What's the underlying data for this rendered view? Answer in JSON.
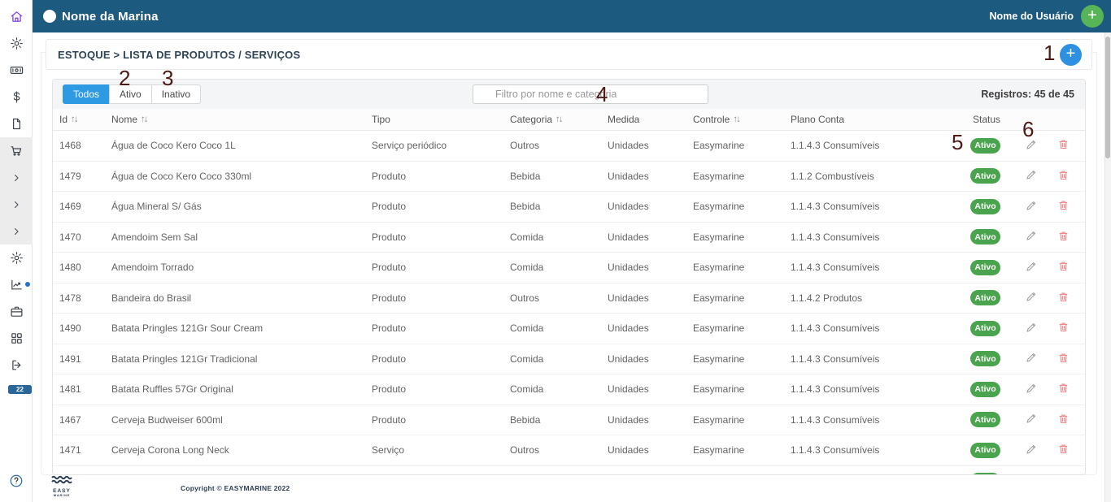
{
  "topbar": {
    "marina_name": "Nome da Marina",
    "user_name": "Nome do Usuário",
    "add_user_label": "+"
  },
  "breadcrumb": {
    "text": "ESTOQUE > LISTA DE PRODUTOS / SERVIÇOS",
    "add_label": "+"
  },
  "sidebar": {
    "icons": [
      {
        "name": "home",
        "active": true
      },
      {
        "name": "settings"
      },
      {
        "name": "money"
      },
      {
        "name": "dollar"
      },
      {
        "name": "document"
      },
      {
        "name": "cart",
        "group": "gray"
      },
      {
        "name": "chevron-right",
        "group": "gray"
      },
      {
        "name": "chevron-right",
        "group": "gray"
      },
      {
        "name": "chevron-right",
        "group": "gray"
      },
      {
        "name": "settings"
      },
      {
        "name": "chart",
        "dot": true
      },
      {
        "name": "briefcase"
      },
      {
        "name": "apps"
      },
      {
        "name": "logout"
      }
    ],
    "notification_badge": "22"
  },
  "filter": {
    "tabs": [
      "Todos",
      "Ativo",
      "Inativo"
    ],
    "active_tab": "Todos",
    "search_placeholder": "Filtro por nome e categoria",
    "records": "Registros: 45 de 45"
  },
  "table": {
    "columns": [
      {
        "label": "Id",
        "sortable": true
      },
      {
        "label": "Nome",
        "sortable": true
      },
      {
        "label": "Tipo",
        "sortable": false
      },
      {
        "label": "Categoria",
        "sortable": true
      },
      {
        "label": "Medida",
        "sortable": false
      },
      {
        "label": "Controle",
        "sortable": true
      },
      {
        "label": "Plano Conta",
        "sortable": false
      },
      {
        "label": "Status",
        "sortable": false
      }
    ],
    "sort_glyph": "↑↓",
    "rows": [
      {
        "id": "1468",
        "nome": "Água de Coco Kero Coco 1L",
        "tipo": "Serviço periódico",
        "categoria": "Outros",
        "medida": "Unidades",
        "controle": "Easymarine",
        "plano_conta": "1.1.4.3 Consumíveis",
        "status": "Ativo"
      },
      {
        "id": "1479",
        "nome": "Água de Coco Kero Coco 330ml",
        "tipo": "Produto",
        "categoria": "Bebida",
        "medida": "Unidades",
        "controle": "Easymarine",
        "plano_conta": "1.1.2 Combustíveis",
        "status": "Ativo"
      },
      {
        "id": "1469",
        "nome": "Água Mineral S/ Gás",
        "tipo": "Produto",
        "categoria": "Bebida",
        "medida": "Unidades",
        "controle": "Easymarine",
        "plano_conta": "1.1.4.3 Consumíveis",
        "status": "Ativo"
      },
      {
        "id": "1470",
        "nome": "Amendoim Sem Sal",
        "tipo": "Produto",
        "categoria": "Comida",
        "medida": "Unidades",
        "controle": "Easymarine",
        "plano_conta": "1.1.4.3 Consumíveis",
        "status": "Ativo"
      },
      {
        "id": "1480",
        "nome": "Amendoim Torrado",
        "tipo": "Produto",
        "categoria": "Comida",
        "medida": "Unidades",
        "controle": "Easymarine",
        "plano_conta": "1.1.4.3 Consumíveis",
        "status": "Ativo"
      },
      {
        "id": "1478",
        "nome": "Bandeira do Brasil",
        "tipo": "Produto",
        "categoria": "Outros",
        "medida": "Unidades",
        "controle": "Easymarine",
        "plano_conta": "1.1.4.2 Produtos",
        "status": "Ativo"
      },
      {
        "id": "1490",
        "nome": "Batata Pringles 121Gr Sour Cream",
        "tipo": "Produto",
        "categoria": "Comida",
        "medida": "Unidades",
        "controle": "Easymarine",
        "plano_conta": "1.1.4.3 Consumíveis",
        "status": "Ativo"
      },
      {
        "id": "1491",
        "nome": "Batata Pringles 121Gr Tradicional",
        "tipo": "Produto",
        "categoria": "Comida",
        "medida": "Unidades",
        "controle": "Easymarine",
        "plano_conta": "1.1.4.3 Consumíveis",
        "status": "Ativo"
      },
      {
        "id": "1481",
        "nome": "Batata Ruffles 57Gr Original",
        "tipo": "Produto",
        "categoria": "Comida",
        "medida": "Unidades",
        "controle": "Easymarine",
        "plano_conta": "1.1.4.3 Consumíveis",
        "status": "Ativo"
      },
      {
        "id": "1467",
        "nome": "Cerveja Budweiser 600ml",
        "tipo": "Produto",
        "categoria": "Bebida",
        "medida": "Unidades",
        "controle": "Easymarine",
        "plano_conta": "1.1.4.3 Consumíveis",
        "status": "Ativo"
      },
      {
        "id": "1471",
        "nome": "Cerveja Corona Long Neck",
        "tipo": "Serviço",
        "categoria": "Outros",
        "medida": "Unidades",
        "controle": "Easymarine",
        "plano_conta": "1.1.4.3 Consumíveis",
        "status": "Ativo"
      }
    ],
    "partial_row_status": "Ativo"
  },
  "annotations": {
    "n1": "1",
    "n2": "2",
    "n3": "3",
    "n4": "4",
    "n5": "5",
    "n6": "6"
  },
  "footer": {
    "logo_line1": "EASY",
    "logo_line2": "MARINE",
    "copyright": "Copyright © EASYMARINE 2022"
  },
  "colors": {
    "topbar_blue": "#1d5a80",
    "active_tab_blue": "#2e9ae4",
    "add_button_blue": "#2e90e0",
    "add_button_green": "#57b457",
    "status_badge_green": "#4aa44e",
    "delete_red": "#ee8181",
    "annotation_maroon": "#4f1a15",
    "sidebar_active_purple": "#7a35e0",
    "notification_badge_blue": "#2b6699"
  }
}
